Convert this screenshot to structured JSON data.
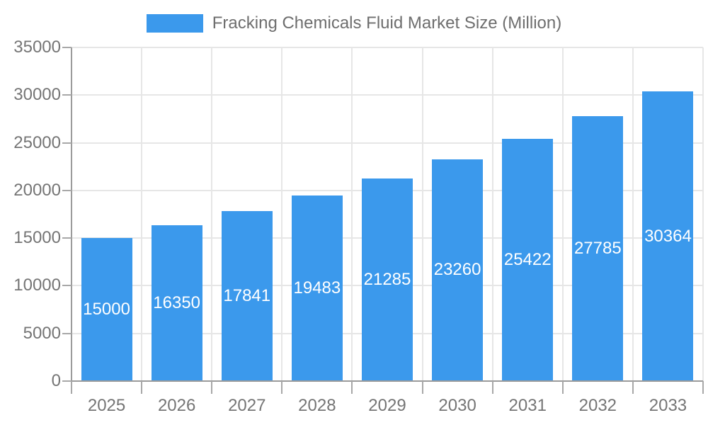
{
  "chart_data": {
    "type": "bar",
    "title": "Fracking Chemicals Fluid Market Size (Million)",
    "legend": [
      "Fracking Chemicals Fluid Market Size (Million)"
    ],
    "legend_position": "top-center",
    "categories": [
      "2025",
      "2026",
      "2027",
      "2028",
      "2029",
      "2030",
      "2031",
      "2032",
      "2033"
    ],
    "values": [
      15000,
      16350,
      17841,
      19483,
      21285,
      23260,
      25422,
      27785,
      30364
    ],
    "bar_value_labels": [
      "15000",
      "16350",
      "17841",
      "19483",
      "21285",
      "23260",
      "25422",
      "27785",
      "30364"
    ],
    "xlabel": "",
    "ylabel": "",
    "ylim": [
      0,
      35000
    ],
    "yticks": [
      0,
      5000,
      10000,
      15000,
      20000,
      25000,
      30000,
      35000
    ],
    "ytick_labels": [
      "0",
      "5000",
      "10000",
      "15000",
      "20000",
      "25000",
      "30000",
      "35000"
    ],
    "grid": true,
    "bar_label_placement": "inside-center",
    "colors": {
      "bar": "#3B99EC",
      "bar_label_text": "#FFFFFF",
      "axis_line": "#9B9B9B",
      "tick_mark": "#A8A8A8",
      "grid_line": "#E6E6E6",
      "tick_label_text": "#757575",
      "legend_text": "#6E6E6E",
      "background": "#FFFFFF"
    }
  }
}
